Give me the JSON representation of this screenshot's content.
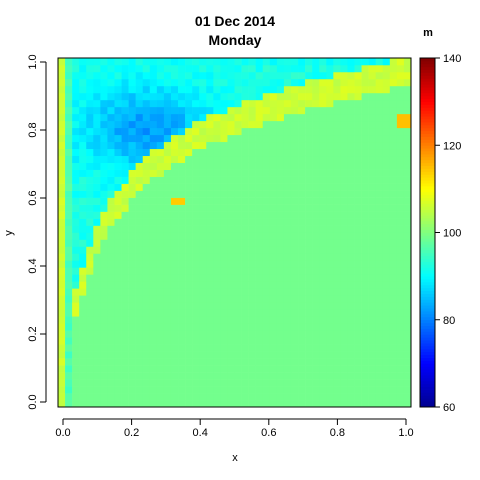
{
  "chart_data": {
    "type": "heatmap",
    "title": "01 Dec 2014",
    "subtitle": "Monday",
    "xlabel": "x",
    "ylabel": "y",
    "xlim": [
      0,
      1
    ],
    "ylim": [
      0,
      1
    ],
    "x_ticks": [
      "0.0",
      "0.2",
      "0.4",
      "0.6",
      "0.8",
      "1.0"
    ],
    "y_ticks": [
      "0.0",
      "0.2",
      "0.4",
      "0.6",
      "0.8",
      "1.0"
    ],
    "colorbar": {
      "unit": "m",
      "range": [
        60,
        140
      ],
      "ticks": [
        "60",
        "80",
        "100",
        "120",
        "140"
      ],
      "palette": [
        "#00008F",
        "#0000FF",
        "#0080FF",
        "#00FFFF",
        "#80FF80",
        "#FFFF00",
        "#FF8000",
        "#FF0000",
        "#800000"
      ]
    },
    "grid_resolution": [
      50,
      50
    ],
    "description": "Field is ~99 (green) below a curve y = 1 - 0.08/(x+0.02)*... ; a yellow band (~106-110) lies along that curve with orange peaks (~115) near (0.33,0.59) and (0.98,0.82); above the band values drop to cyan/blue (~85-90) with a blue minimum (~80) near (0.25,0.8); top row and left edge are cyan/yellow."
  }
}
